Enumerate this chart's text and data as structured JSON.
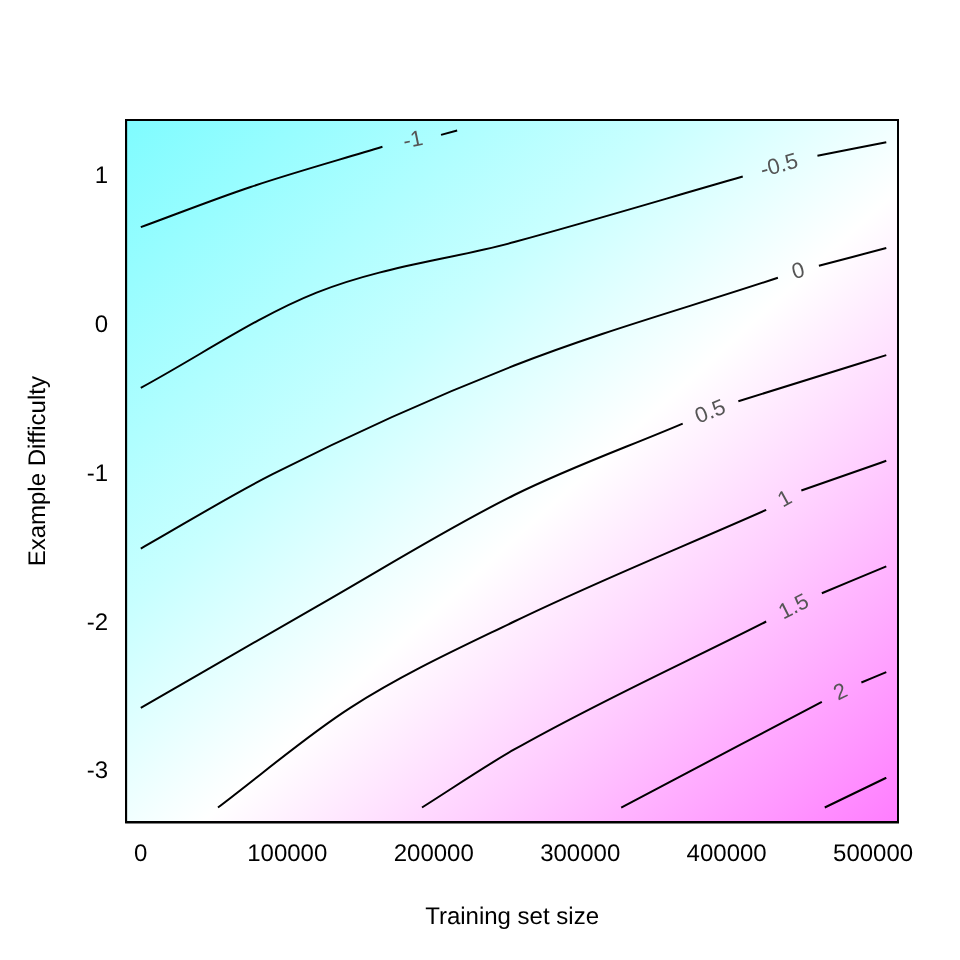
{
  "chart_data": {
    "type": "line",
    "xlabel": "Training set size",
    "ylabel": "Example Difficulty",
    "xlim": [
      -10000,
      517000
    ],
    "ylim": [
      -3.34,
      1.38
    ],
    "xticks": [
      0,
      100000,
      200000,
      300000,
      400000,
      500000
    ],
    "yticks": [
      -3,
      -2,
      -1,
      0,
      1
    ],
    "grid": false,
    "legend": false,
    "marker": "none",
    "line_style": "solid",
    "series": [
      {
        "name": "-1",
        "color": "#000000",
        "x": [
          0,
          75000,
          165000,
          186000,
          205000,
          216000
        ],
        "values": [
          0.66,
          0.93,
          1.2,
          null,
          1.28,
          1.31
        ]
      },
      {
        "name": "-0.5",
        "color": "#000000",
        "x": [
          0,
          120000,
          255000,
          411000,
          436000,
          462000,
          509000
        ],
        "values": [
          -0.42,
          0.22,
          0.56,
          1.0,
          null,
          1.14,
          1.23
        ]
      },
      {
        "name": "0",
        "color": "#000000",
        "x": [
          0,
          90000,
          255000,
          435000,
          449000,
          463000,
          509000
        ],
        "values": [
          -1.5,
          -1.0,
          -0.27,
          0.32,
          null,
          0.4,
          0.52
        ]
      },
      {
        "name": "0.5",
        "color": "#000000",
        "x": [
          0,
          120000,
          255000,
          370000,
          389000,
          408000,
          509000
        ],
        "values": [
          -2.57,
          -1.89,
          -1.14,
          -0.66,
          null,
          -0.51,
          -0.2
        ]
      },
      {
        "name": "1",
        "color": "#000000",
        "x": [
          52700,
          143000,
          255000,
          427000,
          440000,
          451000,
          509000
        ],
        "values": [
          -3.24,
          -2.57,
          -1.99,
          -1.24,
          null,
          -1.11,
          -0.91
        ]
      },
      {
        "name": "1.5",
        "color": "#000000",
        "x": [
          192000,
          255000,
          427000,
          446000,
          465000,
          509000
        ],
        "values": [
          -3.24,
          -2.85,
          -1.99,
          null,
          -1.8,
          -1.62
        ]
      },
      {
        "name": "2",
        "color": "#000000",
        "x": [
          328000,
          465000,
          478000,
          492000,
          509000
        ],
        "values": [
          -3.24,
          -2.53,
          null,
          -2.4,
          -2.33
        ]
      },
      {
        "color": "#000000",
        "x": [
          467000,
          509000
        ],
        "values": [
          -3.24,
          -3.04
        ]
      }
    ]
  }
}
